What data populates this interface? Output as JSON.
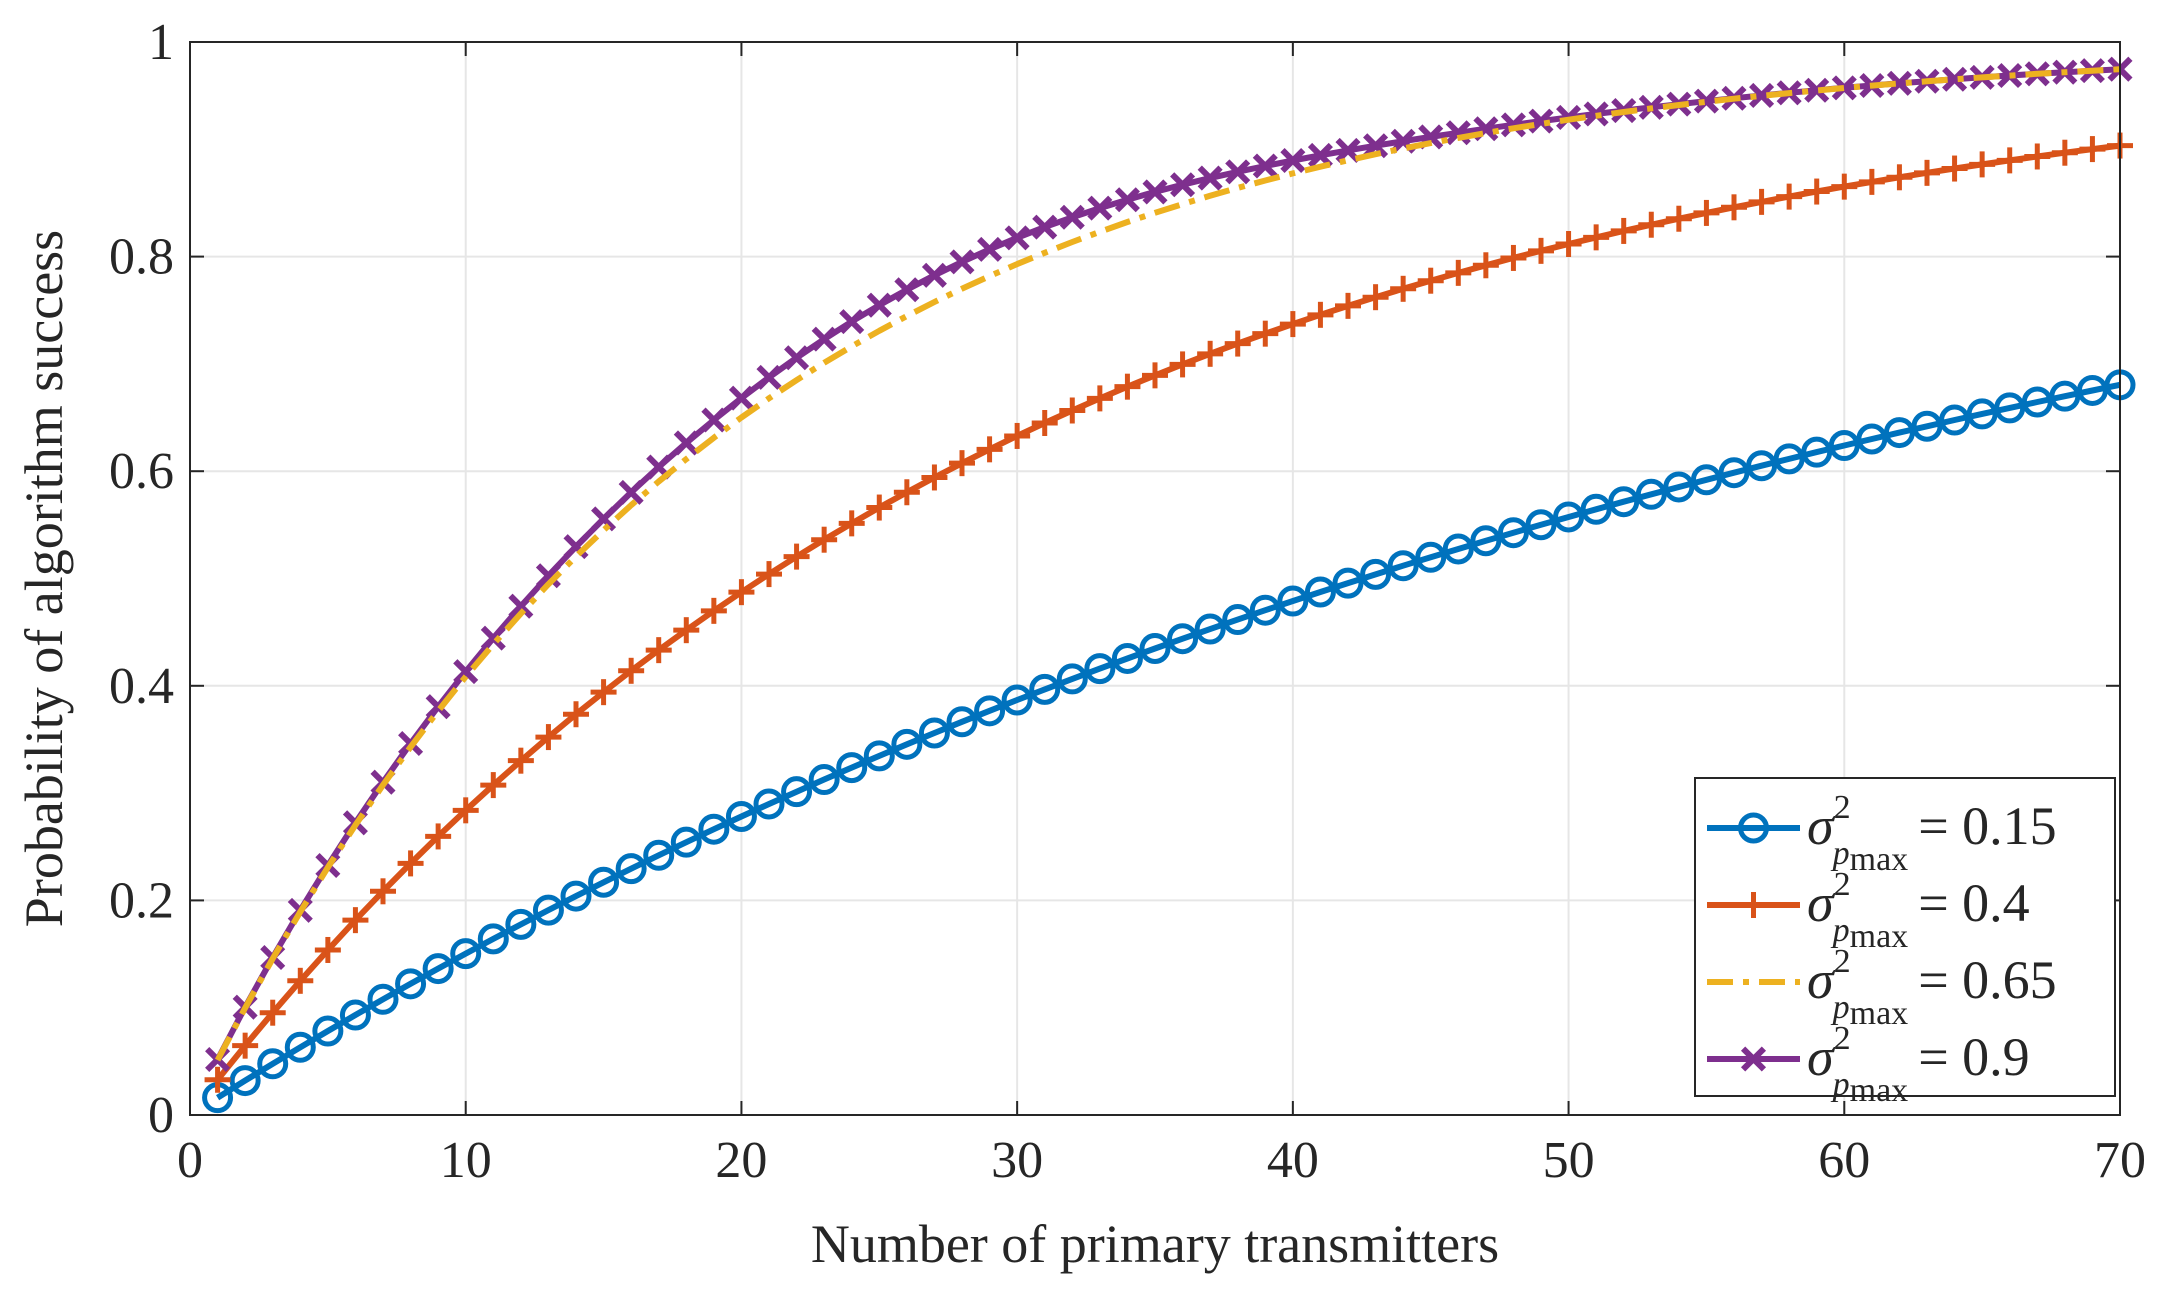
{
  "chart_data": {
    "type": "line",
    "title": "",
    "xlabel": "Number of primary transmitters",
    "ylabel": "Probability of algorithm success",
    "xlim": [
      0,
      70
    ],
    "ylim": [
      0,
      1
    ],
    "xticks": [
      0,
      10,
      20,
      30,
      40,
      50,
      60,
      70
    ],
    "yticks": [
      0,
      0.2,
      0.4,
      0.6,
      0.8,
      1
    ],
    "xtick_labels": [
      "0",
      "10",
      "20",
      "30",
      "40",
      "50",
      "60",
      "70"
    ],
    "ytick_labels": [
      "0",
      "0.2",
      "0.4",
      "0.6",
      "0.8",
      "1"
    ],
    "grid": true,
    "legend_position": "bottom-right",
    "x_range": [
      1,
      70
    ],
    "series": [
      {
        "name": "σ²_pmax = 0.15",
        "legend_sigma": "σ",
        "legend_sup": "2",
        "legend_sub": "p",
        "legend_subsub": "max",
        "legend_value": "= 0.15",
        "color": "#0072BD",
        "marker": "circle",
        "dash": "solid",
        "model": {
          "type": "exp",
          "ymax": 1.0,
          "k": 0.0163,
          "x0": 0.0
        }
      },
      {
        "name": "σ²_pmax = 0.4",
        "legend_sigma": "σ",
        "legend_sup": "2",
        "legend_sub": "p",
        "legend_subsub": "max",
        "legend_value": "= 0.4",
        "color": "#D95319",
        "marker": "plus",
        "dash": "solid",
        "model": {
          "type": "exp",
          "ymax": 1.0,
          "k": 0.0334,
          "x0": 0.0
        }
      },
      {
        "name": "σ²_pmax = 0.65",
        "legend_sigma": "σ",
        "legend_sup": "2",
        "legend_sub": "p",
        "legend_subsub": "max",
        "legend_value": "= 0.65",
        "color": "#EDB120",
        "marker": "none",
        "dash": "dashdot",
        "model": {
          "type": "exp",
          "ymax": 1.0,
          "k": 0.0525,
          "x0": 0.0
        }
      },
      {
        "name": "σ²_pmax = 0.9",
        "legend_sigma": "σ",
        "legend_sup": "2",
        "legend_sub": "p",
        "legend_subsub": "max",
        "legend_value": "= 0.9",
        "color": "#7E2F8E",
        "marker": "x",
        "dash": "solid",
        "model": {
          "type": "exp",
          "ymax": 1.0,
          "k": 0.0525,
          "x0": 0.0
        }
      }
    ]
  }
}
